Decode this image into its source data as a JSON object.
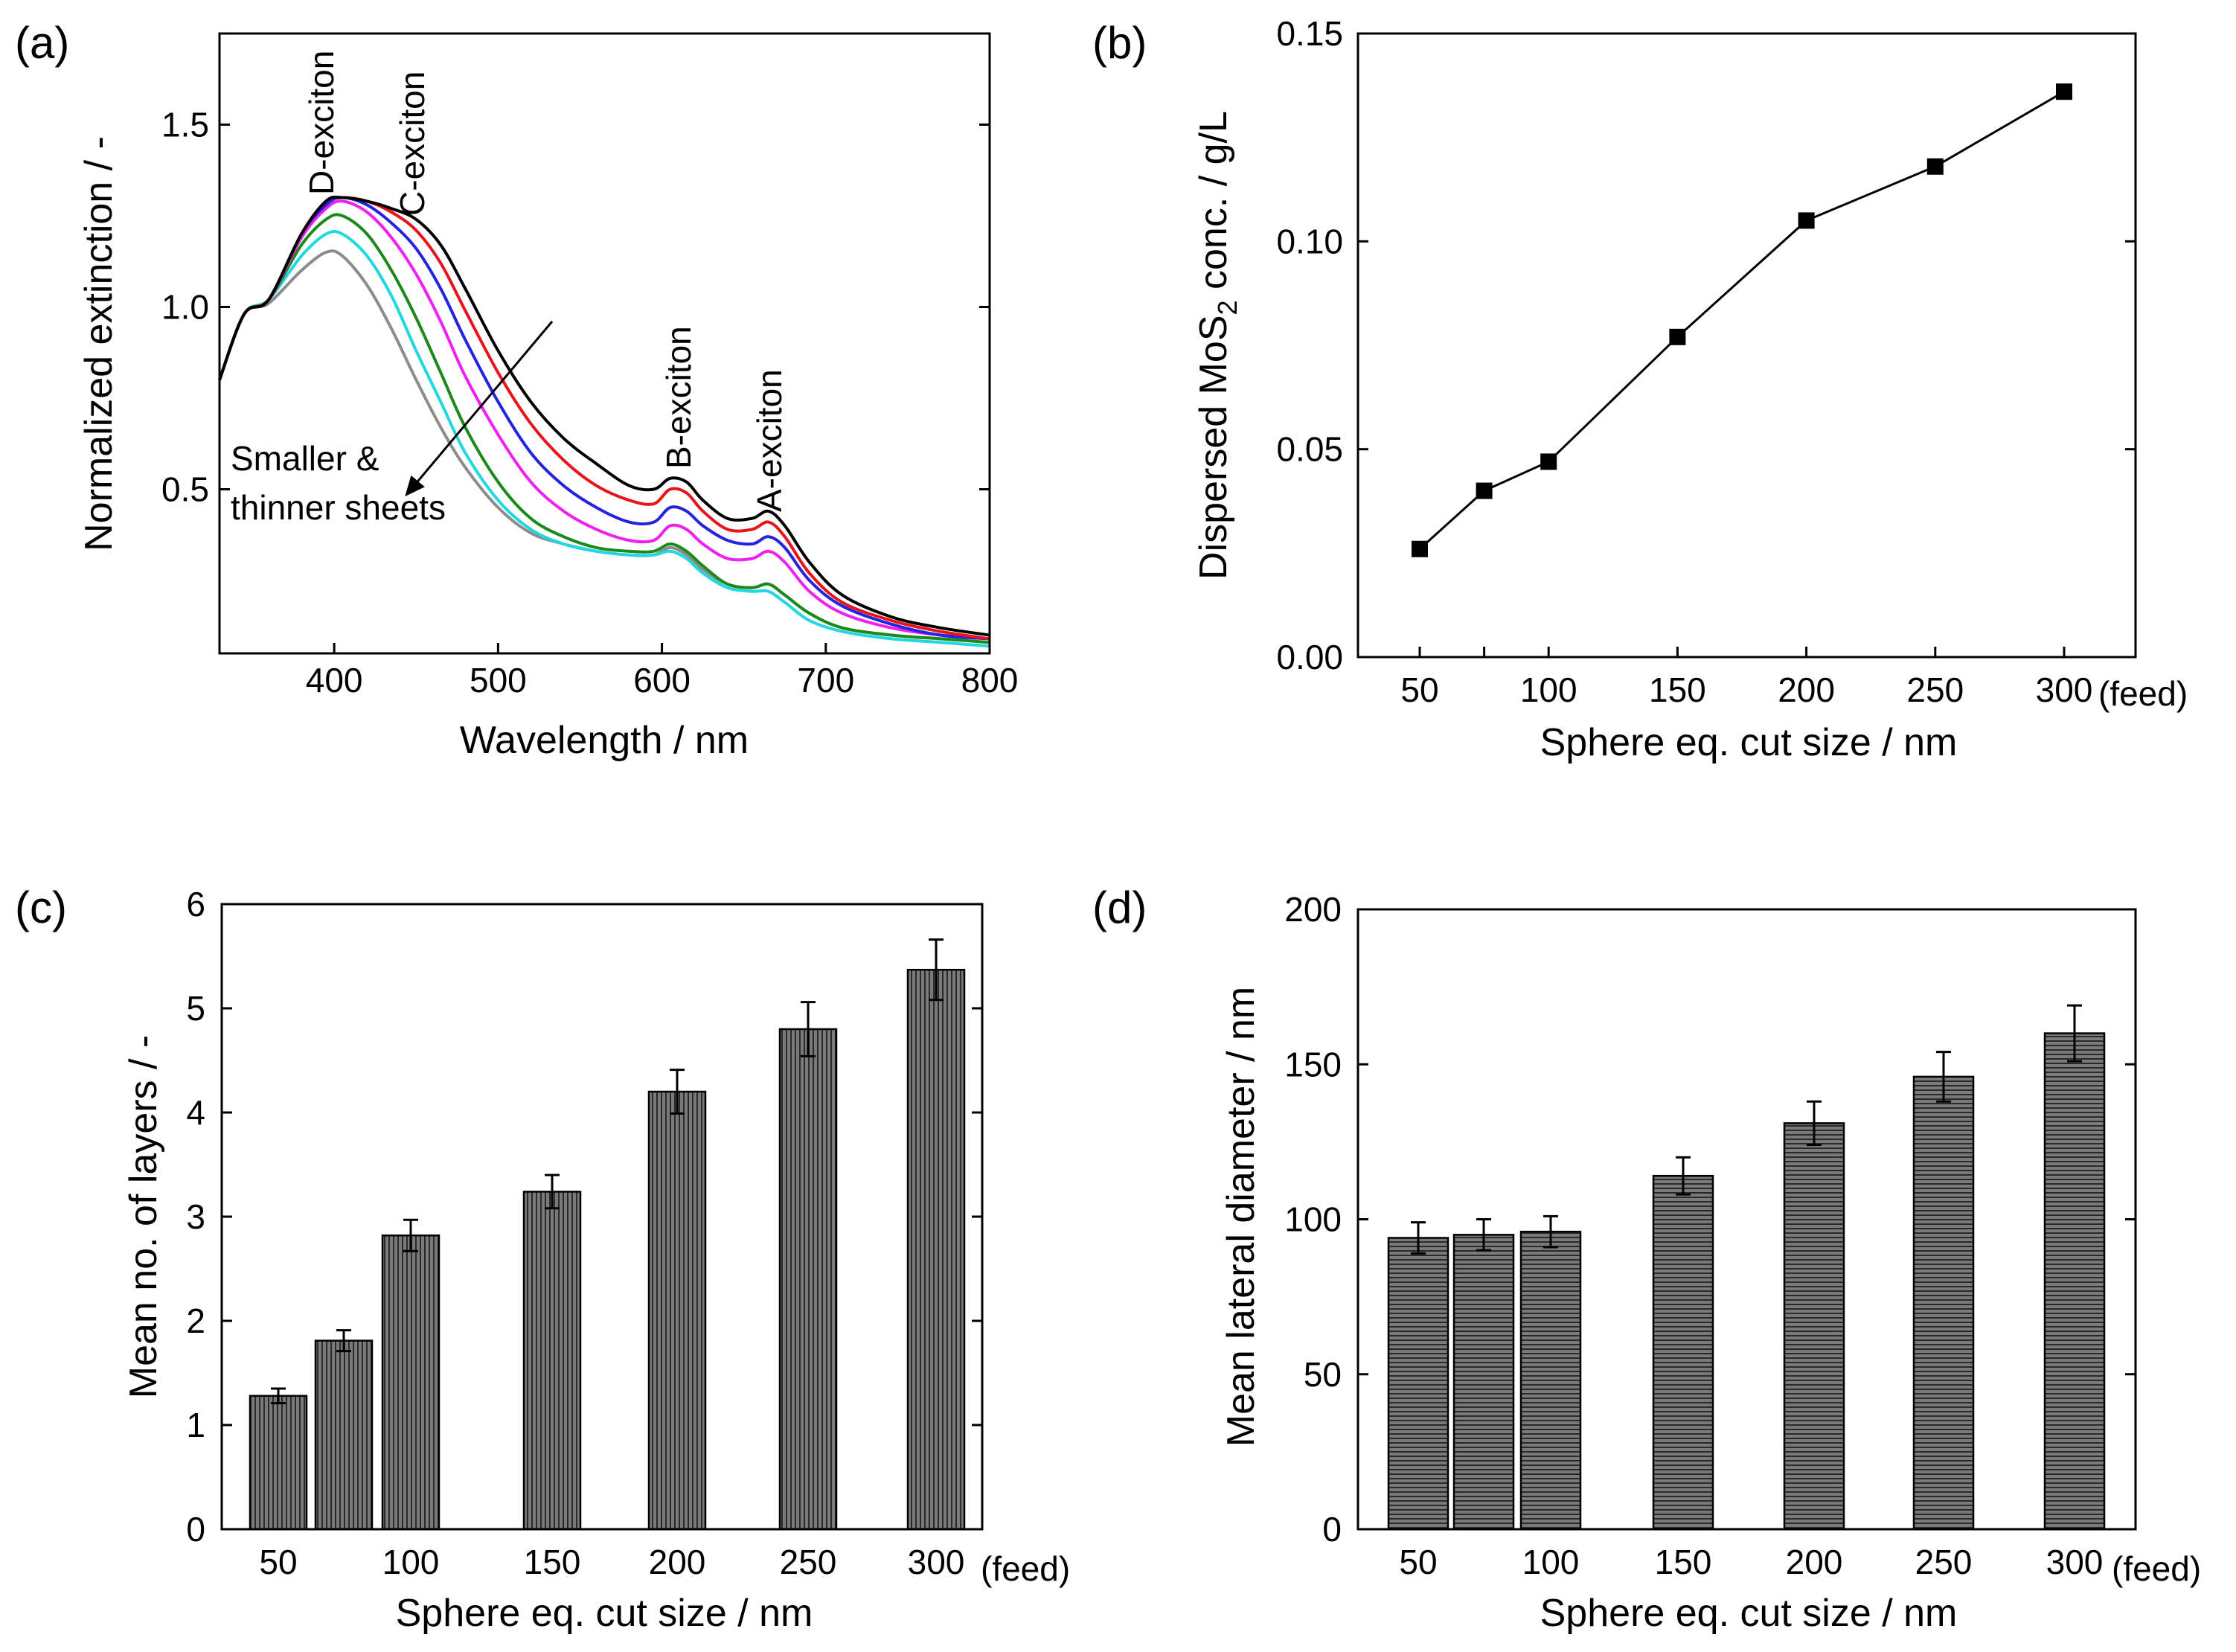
{
  "colors": {
    "black": "#000000",
    "red": "#e8141a",
    "blue": "#2323e0",
    "magenta": "#f020f0",
    "green": "#1a8a1a",
    "cyan": "#22d8e0",
    "gray": "#8c8c8c",
    "bar_fill": "#7a7a7a",
    "bar_hatch": "#2a2a2a"
  },
  "chart_data": [
    {
      "id": "a",
      "panel_label": "(a)",
      "type": "line",
      "xlabel": "Wavelength / nm",
      "ylabel": "Normalized extinction / -",
      "xlim": [
        330,
        800
      ],
      "ylim": [
        0.05,
        1.75
      ],
      "xticks": [
        400,
        500,
        600,
        700,
        800
      ],
      "xtick_labels": [
        "400",
        "500",
        "600",
        "700",
        "800"
      ],
      "yticks": [
        0.5,
        1.0,
        1.5
      ],
      "ytick_labels": [
        "0.5",
        "1.0",
        "1.5"
      ],
      "x": [
        330,
        345,
        360,
        380,
        395,
        405,
        420,
        435,
        450,
        465,
        480,
        500,
        520,
        540,
        560,
        580,
        595,
        605,
        615,
        625,
        640,
        655,
        665,
        675,
        690,
        710,
        740,
        770,
        800
      ],
      "series": [
        {
          "name": "black",
          "color": "#000000",
          "values": [
            0.8,
            0.98,
            1.02,
            1.2,
            1.29,
            1.3,
            1.29,
            1.27,
            1.24,
            1.17,
            1.05,
            0.88,
            0.74,
            0.64,
            0.57,
            0.51,
            0.5,
            0.53,
            0.52,
            0.47,
            0.42,
            0.42,
            0.44,
            0.4,
            0.3,
            0.21,
            0.15,
            0.12,
            0.1
          ]
        },
        {
          "name": "red",
          "color": "#e8141a",
          "values": [
            0.8,
            0.98,
            1.02,
            1.2,
            1.29,
            1.3,
            1.29,
            1.26,
            1.21,
            1.12,
            0.99,
            0.82,
            0.68,
            0.58,
            0.51,
            0.47,
            0.46,
            0.5,
            0.49,
            0.44,
            0.39,
            0.39,
            0.41,
            0.37,
            0.27,
            0.19,
            0.14,
            0.11,
            0.09
          ]
        },
        {
          "name": "blue",
          "color": "#2323e0",
          "values": [
            0.8,
            0.98,
            1.02,
            1.2,
            1.28,
            1.3,
            1.28,
            1.23,
            1.16,
            1.05,
            0.91,
            0.74,
            0.6,
            0.51,
            0.45,
            0.41,
            0.41,
            0.45,
            0.44,
            0.4,
            0.36,
            0.35,
            0.37,
            0.34,
            0.25,
            0.18,
            0.13,
            0.1,
            0.09
          ]
        },
        {
          "name": "magenta",
          "color": "#f020f0",
          "values": [
            0.8,
            0.98,
            1.02,
            1.19,
            1.27,
            1.29,
            1.26,
            1.19,
            1.09,
            0.96,
            0.81,
            0.65,
            0.52,
            0.44,
            0.39,
            0.36,
            0.36,
            0.4,
            0.39,
            0.35,
            0.31,
            0.31,
            0.33,
            0.3,
            0.22,
            0.16,
            0.12,
            0.1,
            0.09
          ]
        },
        {
          "name": "green",
          "color": "#1a8a1a",
          "values": [
            0.8,
            0.98,
            1.02,
            1.17,
            1.24,
            1.25,
            1.2,
            1.1,
            0.97,
            0.82,
            0.67,
            0.52,
            0.42,
            0.37,
            0.34,
            0.33,
            0.33,
            0.35,
            0.33,
            0.29,
            0.24,
            0.23,
            0.24,
            0.21,
            0.16,
            0.12,
            0.1,
            0.09,
            0.08
          ]
        },
        {
          "name": "cyan",
          "color": "#22d8e0",
          "values": [
            0.8,
            0.98,
            1.02,
            1.14,
            1.2,
            1.2,
            1.14,
            1.03,
            0.88,
            0.74,
            0.6,
            0.47,
            0.39,
            0.35,
            0.33,
            0.32,
            0.32,
            0.33,
            0.31,
            0.27,
            0.23,
            0.22,
            0.22,
            0.19,
            0.14,
            0.11,
            0.09,
            0.08,
            0.07
          ]
        },
        {
          "name": "gray",
          "color": "#8c8c8c",
          "values": [
            0.8,
            0.98,
            1.01,
            1.1,
            1.15,
            1.14,
            1.06,
            0.94,
            0.8,
            0.67,
            0.56,
            0.45,
            0.38,
            0.35,
            0.33,
            0.32,
            0.32,
            0.34,
            0.32,
            0.28,
            0.24,
            0.23,
            0.24,
            0.21,
            0.16,
            0.12,
            0.1,
            0.09,
            0.08
          ]
        }
      ],
      "annotations": {
        "d_exciton": "D-exciton",
        "c_exciton": "C-exciton",
        "b_exciton": "B-exciton",
        "a_exciton": "A-exciton",
        "trend_line1": "Smaller &",
        "trend_line2": "thinner sheets"
      }
    },
    {
      "id": "b",
      "panel_label": "(b)",
      "type": "scatter",
      "xlabel": "Sphere eq. cut size / nm",
      "ylabel_main": "Dispersed MoS",
      "ylabel_sub": "2",
      "ylabel_tail": " conc. / g/L",
      "ylim": [
        0,
        0.15
      ],
      "yticks": [
        0,
        0.05,
        0.1,
        0.15
      ],
      "ytick_labels": [
        "0.00",
        "0.05",
        "0.10",
        "0.15"
      ],
      "categories": [
        "50",
        "75",
        "100",
        "150",
        "200",
        "250",
        "300"
      ],
      "tick_labels": [
        "50",
        "",
        "100",
        "150",
        "200",
        "250",
        "300"
      ],
      "values": [
        0.026,
        0.04,
        0.047,
        0.077,
        0.105,
        0.118,
        0.136
      ],
      "feed_label": "(feed)"
    },
    {
      "id": "c",
      "panel_label": "(c)",
      "type": "bar",
      "xlabel": "Sphere eq. cut size / nm",
      "ylabel": "Mean no. of layers / -",
      "ylim": [
        0,
        6
      ],
      "yticks": [
        0,
        1,
        2,
        3,
        4,
        5,
        6
      ],
      "ytick_labels": [
        "0",
        "1",
        "2",
        "3",
        "4",
        "5",
        "6"
      ],
      "categories": [
        "50",
        "75",
        "100",
        "150",
        "200",
        "250",
        "300"
      ],
      "tick_labels": [
        "50",
        "",
        "100",
        "150",
        "200",
        "250",
        "300"
      ],
      "values": [
        1.28,
        1.81,
        2.82,
        3.24,
        4.2,
        4.8,
        5.37
      ],
      "errors": [
        0.07,
        0.1,
        0.15,
        0.16,
        0.21,
        0.26,
        0.29
      ],
      "feed_label": "(feed)"
    },
    {
      "id": "d",
      "panel_label": "(d)",
      "type": "bar",
      "xlabel": "Sphere eq. cut size / nm",
      "ylabel": "Mean lateral diameter / nm",
      "ylim": [
        0,
        200
      ],
      "yticks": [
        0,
        50,
        100,
        150,
        200
      ],
      "ytick_labels": [
        "0",
        "50",
        "100",
        "150",
        "200"
      ],
      "categories": [
        "50",
        "75",
        "100",
        "150",
        "200",
        "250",
        "300"
      ],
      "tick_labels": [
        "50",
        "",
        "100",
        "150",
        "200",
        "250",
        "300"
      ],
      "values": [
        94,
        95,
        96,
        114,
        131,
        146,
        160
      ],
      "errors": [
        5,
        5,
        5,
        6,
        7,
        8,
        9
      ],
      "feed_label": "(feed)"
    }
  ]
}
